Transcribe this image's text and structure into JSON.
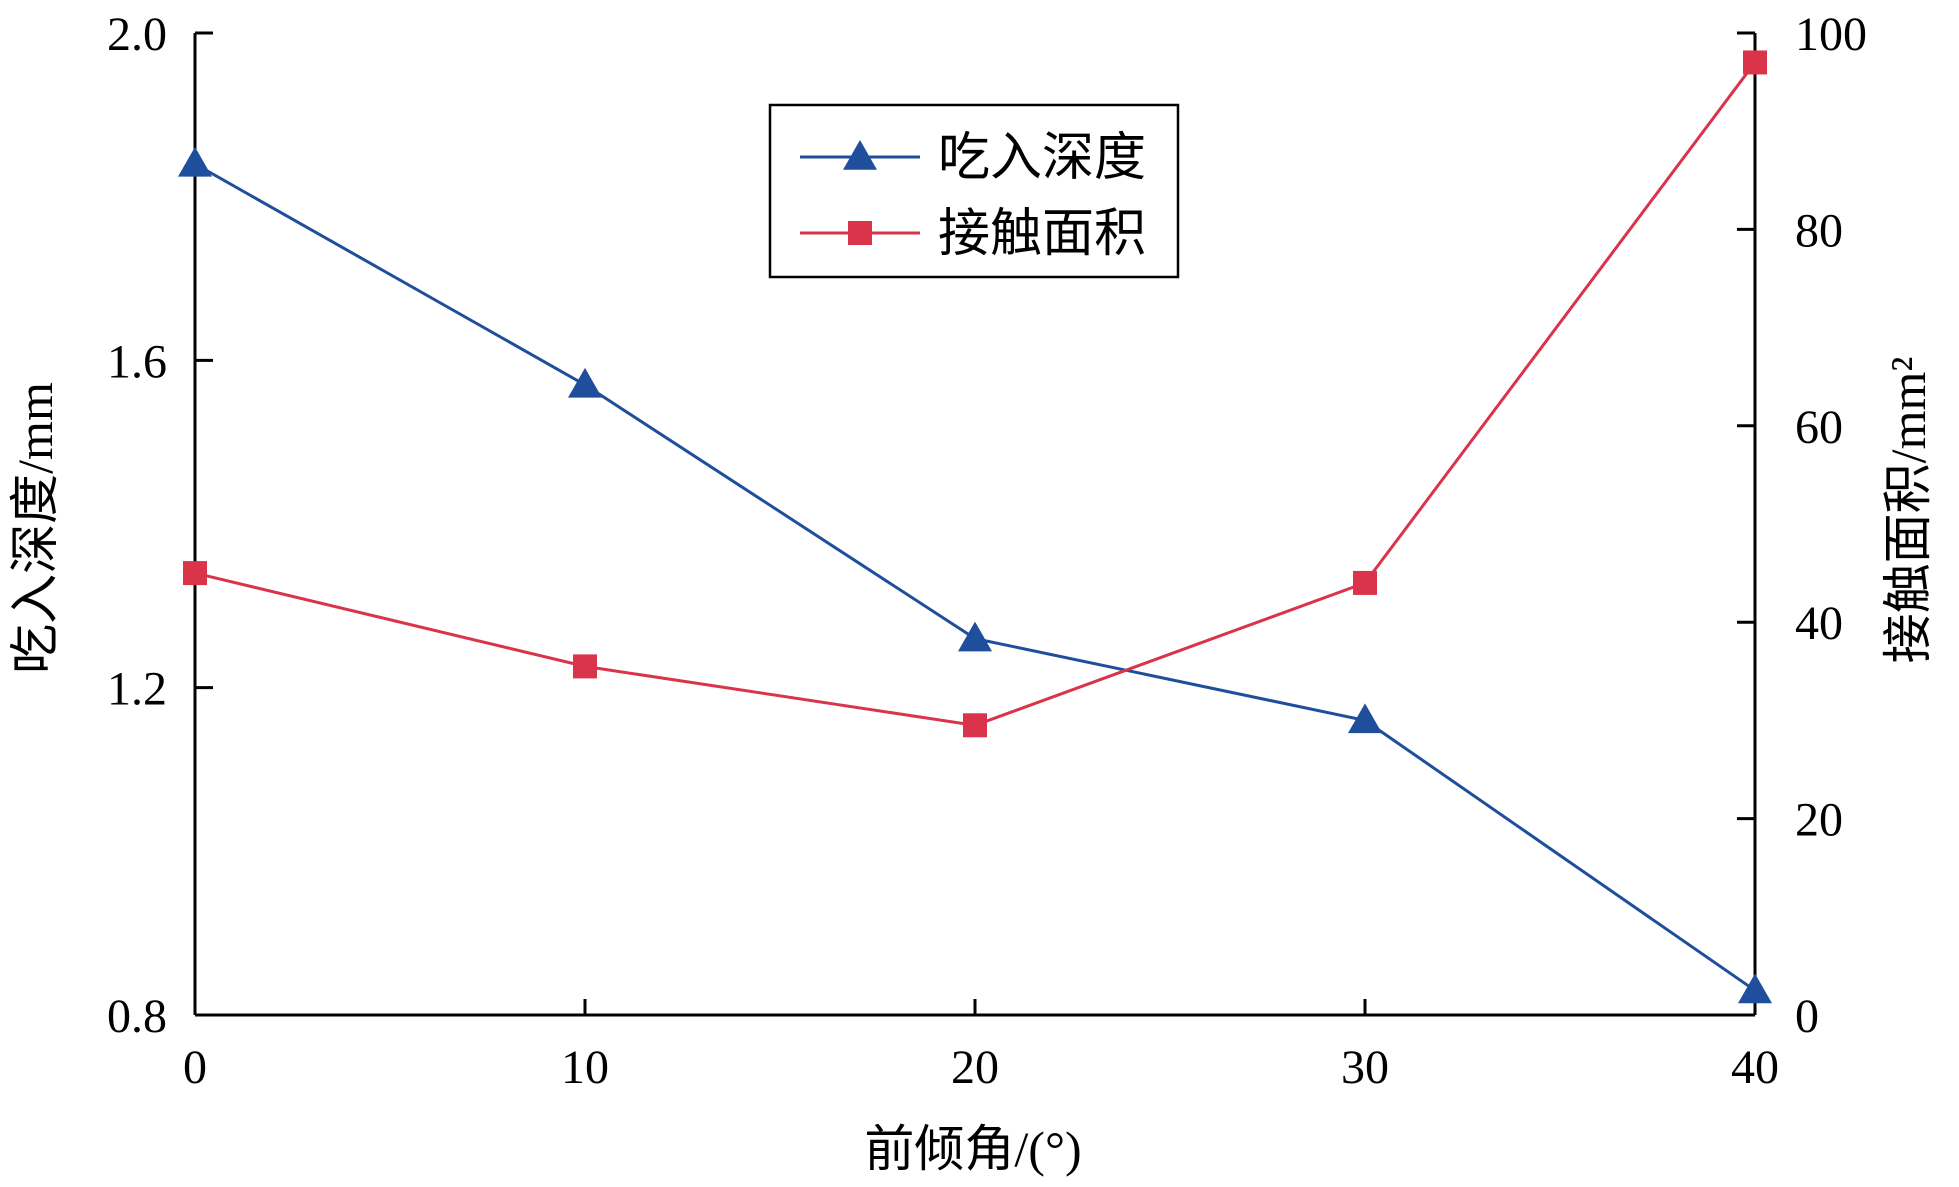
{
  "chart_data": {
    "type": "line",
    "xlabel": "前倾角/(°)",
    "ylabel_left": "吃入深度/mm",
    "ylabel_right": "接触面积/mm²",
    "x": [
      0,
      10,
      20,
      30,
      40
    ],
    "xlim": [
      0,
      40
    ],
    "xticks": [
      "0",
      "10",
      "20",
      "30",
      "40"
    ],
    "ylim_left": [
      0.8,
      2.0
    ],
    "yticks_left": [
      "0.8",
      "1.2",
      "1.6",
      "2.0"
    ],
    "ylim_right": [
      0,
      100
    ],
    "yticks_right": [
      "0",
      "20",
      "40",
      "60",
      "80",
      "100"
    ],
    "grid": false,
    "legend_position": "top-center",
    "series": [
      {
        "name": "吃入深度",
        "axis": "left",
        "marker": "triangle",
        "color": "#1f4e9c",
        "values": [
          1.84,
          1.57,
          1.26,
          1.16,
          0.83
        ]
      },
      {
        "name": "接触面积",
        "axis": "right",
        "marker": "square",
        "color": "#d9344a",
        "values": [
          45,
          35.5,
          29.5,
          44,
          97
        ]
      }
    ]
  }
}
